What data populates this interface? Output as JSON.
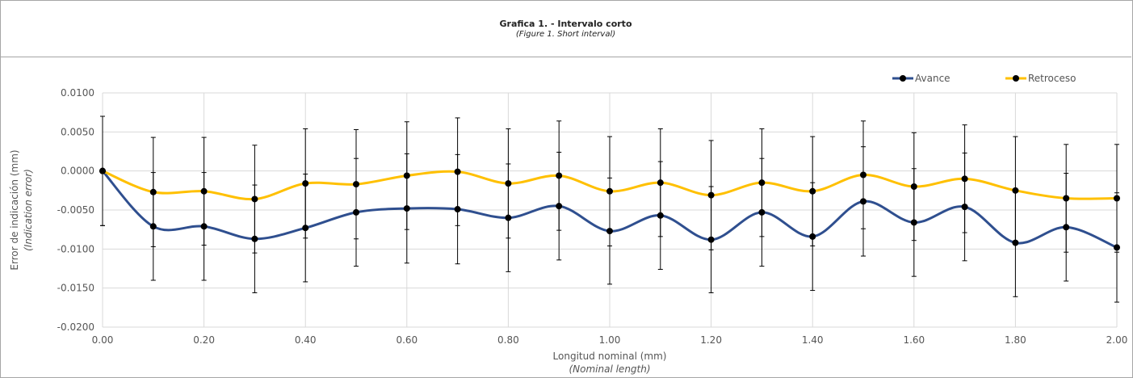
{
  "chart_data": {
    "type": "line",
    "title": "Grafica 1. - Intervalo corto",
    "subtitle": "(Figure 1. Short interval)",
    "xlabel": "Longitud nominal (mm)",
    "xlabel_en": "(Nominal length)",
    "ylabel": "Error de indicación (mm)",
    "ylabel_en": "(Indication error)",
    "xlim": [
      0,
      2
    ],
    "ylim": [
      -0.02,
      0.01
    ],
    "x_ticks": [
      "0.00",
      "0.20",
      "0.40",
      "0.60",
      "0.80",
      "1.00",
      "1.20",
      "1.40",
      "1.60",
      "1.80",
      "2.00"
    ],
    "y_ticks": [
      "0.0100",
      "0.0050",
      "0.0000",
      "-0.0050",
      "-0.0100",
      "-0.0150",
      "-0.0200"
    ],
    "grid": true,
    "legend_position": "top-right",
    "x": [
      0.0,
      0.1,
      0.2,
      0.3,
      0.4,
      0.5,
      0.6,
      0.7,
      0.8,
      0.9,
      1.0,
      1.1,
      1.2,
      1.3,
      1.4,
      1.5,
      1.6,
      1.7,
      1.8,
      1.9,
      2.0
    ],
    "series": [
      {
        "name": "Avance",
        "color": "#2f4f8f",
        "values": [
          0.0,
          -0.0071,
          -0.0071,
          -0.0087,
          -0.0073,
          -0.0053,
          -0.0048,
          -0.0049,
          -0.006,
          -0.0045,
          -0.0077,
          -0.0057,
          -0.0088,
          -0.0053,
          -0.0084,
          -0.0039,
          -0.0066,
          -0.0046,
          -0.0092,
          -0.0072,
          -0.0098
        ],
        "error": [
          0.007,
          0.0069,
          0.0069,
          0.0069,
          0.0069,
          0.0069,
          0.007,
          0.007,
          0.0069,
          0.0069,
          0.0068,
          0.0069,
          0.0068,
          0.0069,
          0.0069,
          0.007,
          0.0069,
          0.0069,
          0.0069,
          0.0069,
          0.007
        ]
      },
      {
        "name": "Retroceso",
        "color": "#ffc000",
        "values": [
          0.0,
          -0.0027,
          -0.0026,
          -0.0036,
          -0.0016,
          -0.0017,
          -0.0006,
          -0.0001,
          -0.0016,
          -0.0006,
          -0.0026,
          -0.0015,
          -0.0031,
          -0.0015,
          -0.0026,
          -0.0005,
          -0.002,
          -0.001,
          -0.0025,
          -0.0035,
          -0.0035
        ],
        "error": [
          0.007,
          0.007,
          0.0069,
          0.0069,
          0.007,
          0.007,
          0.0069,
          0.0069,
          0.007,
          0.007,
          0.007,
          0.0069,
          0.007,
          0.0069,
          0.007,
          0.0069,
          0.0069,
          0.0069,
          0.0069,
          0.0069,
          0.0069
        ]
      }
    ]
  }
}
